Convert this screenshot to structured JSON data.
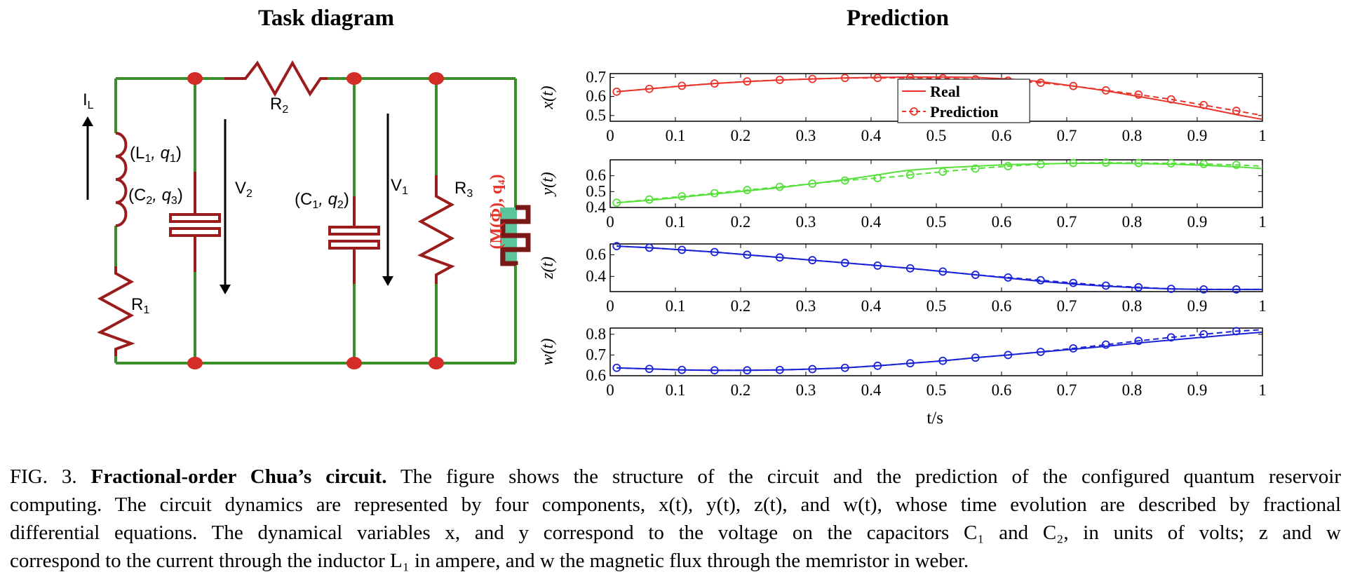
{
  "titles": {
    "left": "Task diagram",
    "right": "Prediction"
  },
  "circuit": {
    "labels": {
      "IL": "I",
      "IL_sub": "L",
      "R2": "R",
      "R2_sub": "2",
      "L1q1": "(L",
      "L1q1_sub": "1",
      "L1q1_tail": ", q",
      "L1q1_tail_sub": "1",
      "C2q3": "(C",
      "C2q3_sub": "2",
      "C2q3_tail": ", q",
      "C2q3_tail_sub": "3",
      "V2": "V",
      "V2_sub": "2",
      "C1q2": "(C",
      "C1q2_sub": "1",
      "C1q2_tail": ", q",
      "C1q2_tail_sub": "2",
      "V1": "V",
      "V1_sub": "1",
      "R3": "R",
      "R3_sub": "3",
      "R1": "R",
      "R1_sub": "1",
      "memristor": "(M(Φ), q₄)"
    },
    "colors": {
      "wire": "#3a8f2a",
      "component": "#9b1c1c",
      "node": "#d42c26",
      "memristor_fill": "#5cc49a",
      "memristor_label": "#e5332a"
    }
  },
  "chart_data": [
    {
      "type": "line",
      "ylabel": "x(t)",
      "xlim": [
        0,
        1
      ],
      "ylim": [
        0.47,
        0.72
      ],
      "yticks": [
        0.5,
        0.6,
        0.7
      ],
      "color": "#e8342b",
      "legend": {
        "position": "top-center",
        "entries": [
          "Real",
          "Prediction"
        ]
      },
      "x": [
        0.01,
        0.06,
        0.11,
        0.16,
        0.21,
        0.26,
        0.31,
        0.36,
        0.41,
        0.46,
        0.51,
        0.56,
        0.61,
        0.66,
        0.71,
        0.76,
        0.81,
        0.86,
        0.91,
        0.96,
        1.0
      ],
      "series": [
        {
          "name": "Real",
          "style": "solid",
          "values": [
            0.625,
            0.64,
            0.655,
            0.668,
            0.678,
            0.686,
            0.692,
            0.697,
            0.7,
            0.702,
            0.702,
            0.7,
            0.692,
            0.678,
            0.655,
            0.63,
            0.6,
            0.57,
            0.54,
            0.505,
            0.48
          ]
        },
        {
          "name": "Prediction",
          "style": "dashed-markers",
          "values": [
            0.625,
            0.64,
            0.656,
            0.668,
            0.679,
            0.687,
            0.692,
            0.697,
            0.697,
            0.698,
            0.695,
            0.69,
            0.683,
            0.672,
            0.655,
            0.632,
            0.61,
            0.585,
            0.555,
            0.525,
            0.5
          ]
        }
      ]
    },
    {
      "type": "line",
      "ylabel": "y(t)",
      "xlim": [
        0,
        1
      ],
      "ylim": [
        0.4,
        0.7
      ],
      "yticks": [
        0.4,
        0.5,
        0.6
      ],
      "color": "#55e03a",
      "x": [
        0.01,
        0.06,
        0.11,
        0.16,
        0.21,
        0.26,
        0.31,
        0.36,
        0.41,
        0.44,
        0.46,
        0.51,
        0.56,
        0.61,
        0.66,
        0.71,
        0.76,
        0.81,
        0.86,
        0.91,
        0.96,
        1.0
      ],
      "series": [
        {
          "name": "Real",
          "style": "solid",
          "values": [
            0.43,
            0.445,
            0.465,
            0.485,
            0.505,
            0.525,
            0.55,
            0.575,
            0.605,
            0.625,
            0.635,
            0.65,
            0.66,
            0.67,
            0.675,
            0.678,
            0.678,
            0.676,
            0.672,
            0.666,
            0.656,
            0.645
          ]
        },
        {
          "name": "Prediction",
          "style": "dashed-markers",
          "values": [
            0.43,
            0.45,
            0.47,
            0.49,
            0.51,
            0.53,
            0.55,
            0.57,
            0.585,
            0.595,
            0.605,
            0.625,
            0.645,
            0.66,
            0.672,
            0.68,
            0.682,
            0.68,
            0.678,
            0.674,
            0.668,
            0.66
          ]
        }
      ]
    },
    {
      "type": "line",
      "ylabel": "z(t)",
      "xlim": [
        0,
        1
      ],
      "ylim": [
        0.26,
        0.7
      ],
      "yticks": [
        0.4,
        0.6
      ],
      "color": "#1a22d6",
      "x": [
        0.01,
        0.06,
        0.11,
        0.16,
        0.21,
        0.26,
        0.31,
        0.36,
        0.41,
        0.46,
        0.51,
        0.56,
        0.61,
        0.66,
        0.71,
        0.76,
        0.81,
        0.86,
        0.91,
        0.96,
        1.0
      ],
      "series": [
        {
          "name": "Real",
          "style": "solid",
          "values": [
            0.68,
            0.665,
            0.645,
            0.625,
            0.6,
            0.575,
            0.55,
            0.525,
            0.5,
            0.475,
            0.445,
            0.415,
            0.385,
            0.355,
            0.33,
            0.31,
            0.295,
            0.285,
            0.28,
            0.28,
            0.28
          ]
        },
        {
          "name": "Prediction",
          "style": "dashed-markers",
          "values": [
            0.68,
            0.665,
            0.645,
            0.625,
            0.6,
            0.575,
            0.55,
            0.525,
            0.5,
            0.475,
            0.445,
            0.415,
            0.39,
            0.365,
            0.34,
            0.315,
            0.3,
            0.285,
            0.28,
            0.28,
            0.28
          ]
        }
      ]
    },
    {
      "type": "line",
      "ylabel": "w(t)",
      "xlabel": "t/s",
      "xlim": [
        0,
        1
      ],
      "ylim": [
        0.6,
        0.83
      ],
      "yticks": [
        0.6,
        0.7,
        0.8
      ],
      "color": "#1a22d6",
      "x": [
        0.01,
        0.06,
        0.11,
        0.16,
        0.21,
        0.26,
        0.31,
        0.36,
        0.41,
        0.46,
        0.51,
        0.56,
        0.61,
        0.66,
        0.71,
        0.76,
        0.81,
        0.86,
        0.91,
        0.96,
        1.0
      ],
      "series": [
        {
          "name": "Real",
          "style": "solid",
          "values": [
            0.638,
            0.633,
            0.628,
            0.626,
            0.626,
            0.628,
            0.632,
            0.638,
            0.648,
            0.66,
            0.672,
            0.687,
            0.7,
            0.714,
            0.728,
            0.742,
            0.758,
            0.772,
            0.786,
            0.8,
            0.81
          ]
        },
        {
          "name": "Prediction",
          "style": "dashed-markers",
          "values": [
            0.638,
            0.633,
            0.628,
            0.626,
            0.626,
            0.628,
            0.632,
            0.638,
            0.648,
            0.66,
            0.672,
            0.687,
            0.7,
            0.715,
            0.732,
            0.75,
            0.768,
            0.785,
            0.8,
            0.815,
            0.822
          ]
        }
      ]
    }
  ],
  "axis": {
    "xticks": [
      "0",
      "0.1",
      "0.2",
      "0.3",
      "0.4",
      "0.5",
      "0.6",
      "0.7",
      "0.8",
      "0.9",
      "1"
    ],
    "xlabel": "t/s"
  },
  "caption": {
    "fig": "FIG. 3.",
    "bold": "Fractional-order Chua’s circuit.",
    "line1_rest": "The figure shows the structure of the circuit and the prediction of the configured quantum reservoir",
    "line2": "computing. The circuit dynamics are represented by four components, x(t), y(t), z(t), and w(t), whose time evolution are described by fractional",
    "line3": "differential equations.  The dynamical variables x, and y correspond to the voltage on the capacitors C₁ and C₂, in units of volts; z and w",
    "line4": "correspond to the current through the inductor L₁ in ampere, and w the magnetic flux through the memristor in weber."
  }
}
